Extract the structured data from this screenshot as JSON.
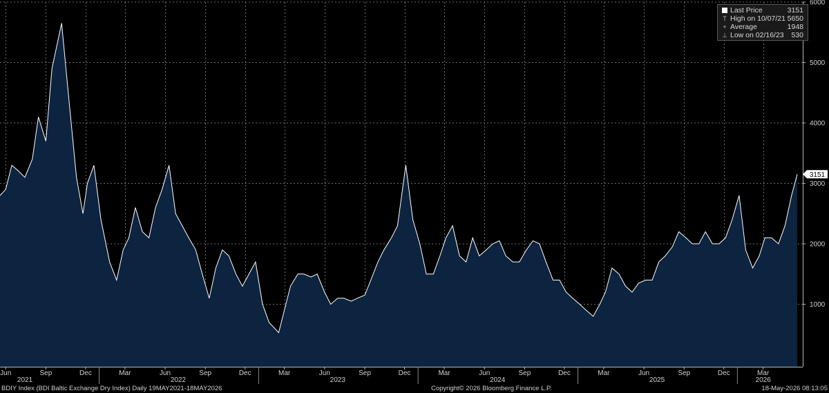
{
  "chart_data": {
    "type": "area",
    "title": "",
    "xlabel": "",
    "ylabel": "",
    "ylim": [
      0,
      6000
    ],
    "y_ticks": [
      1000,
      2000,
      3000,
      4000,
      5000,
      6000
    ],
    "y_tick_labels": [
      "1000",
      "2000",
      "3000",
      "4000",
      "5000",
      "6000"
    ],
    "grid": true,
    "legend_position": "top-right",
    "month_labels": [
      {
        "label": "Jun",
        "x": "2021-06-01"
      },
      {
        "label": "Sep",
        "x": "2021-09-01"
      },
      {
        "label": "Dec",
        "x": "2021-12-01"
      },
      {
        "label": "Mar",
        "x": "2022-03-01"
      },
      {
        "label": "Jun",
        "x": "2022-06-01"
      },
      {
        "label": "Sep",
        "x": "2022-09-01"
      },
      {
        "label": "Dec",
        "x": "2022-12-01"
      },
      {
        "label": "Mar",
        "x": "2023-03-01"
      },
      {
        "label": "Jun",
        "x": "2023-06-01"
      },
      {
        "label": "Sep",
        "x": "2023-09-01"
      },
      {
        "label": "Dec",
        "x": "2023-12-01"
      },
      {
        "label": "Mar",
        "x": "2024-03-01"
      },
      {
        "label": "Jun",
        "x": "2024-06-01"
      },
      {
        "label": "Sep",
        "x": "2024-09-01"
      },
      {
        "label": "Dec",
        "x": "2024-12-01"
      },
      {
        "label": "Mar",
        "x": "2025-03-01"
      },
      {
        "label": "Jun",
        "x": "2025-06-01"
      },
      {
        "label": "Sep",
        "x": "2025-09-01"
      },
      {
        "label": "Dec",
        "x": "2025-12-01"
      },
      {
        "label": "Mar",
        "x": "2026-03-01"
      }
    ],
    "year_labels": [
      {
        "label": "2021",
        "x": "2021-07-15"
      },
      {
        "label": "2022",
        "x": "2022-07-01"
      },
      {
        "label": "2023",
        "x": "2023-07-01"
      },
      {
        "label": "2024",
        "x": "2024-07-01"
      },
      {
        "label": "2025",
        "x": "2025-07-01"
      },
      {
        "label": "2026",
        "x": "2026-03-01"
      }
    ],
    "x_start": "2021-05-19",
    "x_end": "2026-05-18",
    "last_price_label": "3151",
    "series": [
      {
        "color": "#ffffff",
        "fill_color": "#0d2440",
        "x": [
          "2021-05-19",
          "2021-06-01",
          "2021-06-15",
          "2021-07-01",
          "2021-07-15",
          "2021-08-01",
          "2021-08-15",
          "2021-09-01",
          "2021-09-15",
          "2021-10-07",
          "2021-10-25",
          "2021-11-10",
          "2021-11-25",
          "2021-12-05",
          "2021-12-20",
          "2022-01-05",
          "2022-01-25",
          "2022-02-10",
          "2022-02-25",
          "2022-03-10",
          "2022-03-25",
          "2022-04-10",
          "2022-04-25",
          "2022-05-10",
          "2022-05-25",
          "2022-06-10",
          "2022-06-25",
          "2022-07-10",
          "2022-07-25",
          "2022-08-10",
          "2022-08-25",
          "2022-09-10",
          "2022-09-25",
          "2022-10-10",
          "2022-10-25",
          "2022-11-10",
          "2022-11-25",
          "2022-12-10",
          "2022-12-25",
          "2023-01-10",
          "2023-01-25",
          "2023-02-16",
          "2023-03-01",
          "2023-03-15",
          "2023-04-01",
          "2023-04-15",
          "2023-05-01",
          "2023-05-15",
          "2023-06-01",
          "2023-06-15",
          "2023-07-01",
          "2023-07-15",
          "2023-08-01",
          "2023-08-15",
          "2023-09-01",
          "2023-09-15",
          "2023-10-01",
          "2023-10-15",
          "2023-11-01",
          "2023-11-15",
          "2023-12-04",
          "2023-12-20",
          "2024-01-05",
          "2024-01-20",
          "2024-02-05",
          "2024-02-20",
          "2024-03-05",
          "2024-03-20",
          "2024-04-05",
          "2024-04-20",
          "2024-05-05",
          "2024-05-20",
          "2024-06-05",
          "2024-06-20",
          "2024-07-05",
          "2024-07-20",
          "2024-08-05",
          "2024-08-20",
          "2024-09-05",
          "2024-09-20",
          "2024-10-05",
          "2024-10-20",
          "2024-11-05",
          "2024-11-20",
          "2024-12-05",
          "2024-12-20",
          "2025-01-05",
          "2025-01-20",
          "2025-02-05",
          "2025-02-20",
          "2025-03-05",
          "2025-03-20",
          "2025-04-05",
          "2025-04-20",
          "2025-05-05",
          "2025-05-20",
          "2025-06-05",
          "2025-06-20",
          "2025-07-05",
          "2025-07-20",
          "2025-08-05",
          "2025-08-20",
          "2025-09-05",
          "2025-09-20",
          "2025-10-05",
          "2025-10-20",
          "2025-11-05",
          "2025-11-20",
          "2025-12-05",
          "2025-12-20",
          "2026-01-05",
          "2026-01-20",
          "2026-02-05",
          "2026-02-20",
          "2026-03-05",
          "2026-03-20",
          "2026-04-05",
          "2026-04-20",
          "2026-05-05",
          "2026-05-18"
        ],
        "values": [
          2800,
          2900,
          3300,
          3200,
          3100,
          3400,
          4100,
          3700,
          4900,
          5650,
          4300,
          3100,
          2500,
          3000,
          3300,
          2400,
          1700,
          1400,
          1900,
          2100,
          2600,
          2200,
          2100,
          2600,
          2900,
          3300,
          2500,
          2300,
          2100,
          1900,
          1500,
          1100,
          1600,
          1900,
          1800,
          1500,
          1300,
          1500,
          1700,
          1000,
          700,
          530,
          900,
          1300,
          1500,
          1500,
          1450,
          1500,
          1200,
          1000,
          1100,
          1100,
          1050,
          1100,
          1150,
          1400,
          1700,
          1900,
          2100,
          2300,
          3300,
          2400,
          2000,
          1500,
          1500,
          1800,
          2100,
          2300,
          1800,
          1700,
          2100,
          1800,
          1900,
          2000,
          2050,
          1800,
          1700,
          1700,
          1900,
          2050,
          2000,
          1700,
          1400,
          1400,
          1200,
          1100,
          1000,
          900,
          800,
          1000,
          1200,
          1600,
          1500,
          1300,
          1200,
          1350,
          1400,
          1400,
          1700,
          1800,
          1950,
          2200,
          2100,
          2000,
          2000,
          2200,
          2000,
          2000,
          2100,
          2400,
          2800,
          1900,
          1600,
          1800,
          2100,
          2100,
          2000,
          2300,
          2800,
          3151
        ]
      }
    ]
  },
  "legend": {
    "items": [
      {
        "symbol": "square",
        "label": "Last Price",
        "value": "3151"
      },
      {
        "symbol": "high",
        "label": "High on 10/07/21",
        "value": "5650"
      },
      {
        "symbol": "avg",
        "label": "Average",
        "value": "1948"
      },
      {
        "symbol": "low",
        "label": "Low on 02/16/23",
        "value": "530"
      }
    ],
    "symbol_chars": {
      "high": "T",
      "avg": "+",
      "low": "⊥"
    }
  },
  "footer": {
    "left": "BDIY Index (BDI Baltic Exchange Dry Index) Daily 19MAY2021-18MAY2026",
    "center": "Copyright© 2026 Bloomberg Finance L.P.",
    "right": "18-May-2026 08:13:05"
  },
  "colors": {
    "background": "#000000",
    "area_fill": "#0d2440",
    "line": "#ffffff",
    "grid": "#6e6e6e",
    "text": "#d0d0d0"
  }
}
